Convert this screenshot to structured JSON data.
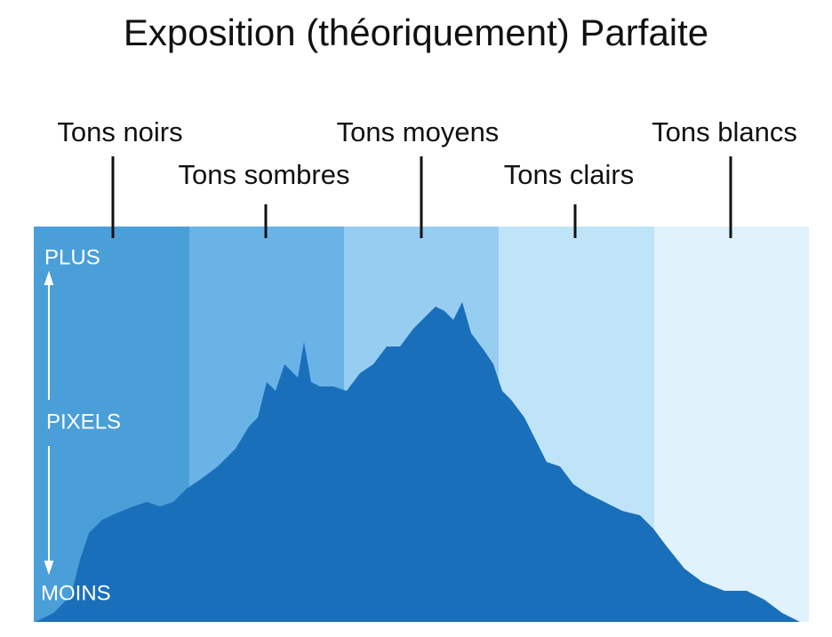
{
  "title": "Exposition (théoriquement) Parfaite",
  "zones": [
    {
      "label": "Tons noirs"
    },
    {
      "label": "Tons sombres"
    },
    {
      "label": "Tons moyens"
    },
    {
      "label": "Tons clairs"
    },
    {
      "label": "Tons blancs"
    }
  ],
  "axis": {
    "top": "PLUS",
    "middle": "PIXELS",
    "bottom": "MOINS"
  }
}
